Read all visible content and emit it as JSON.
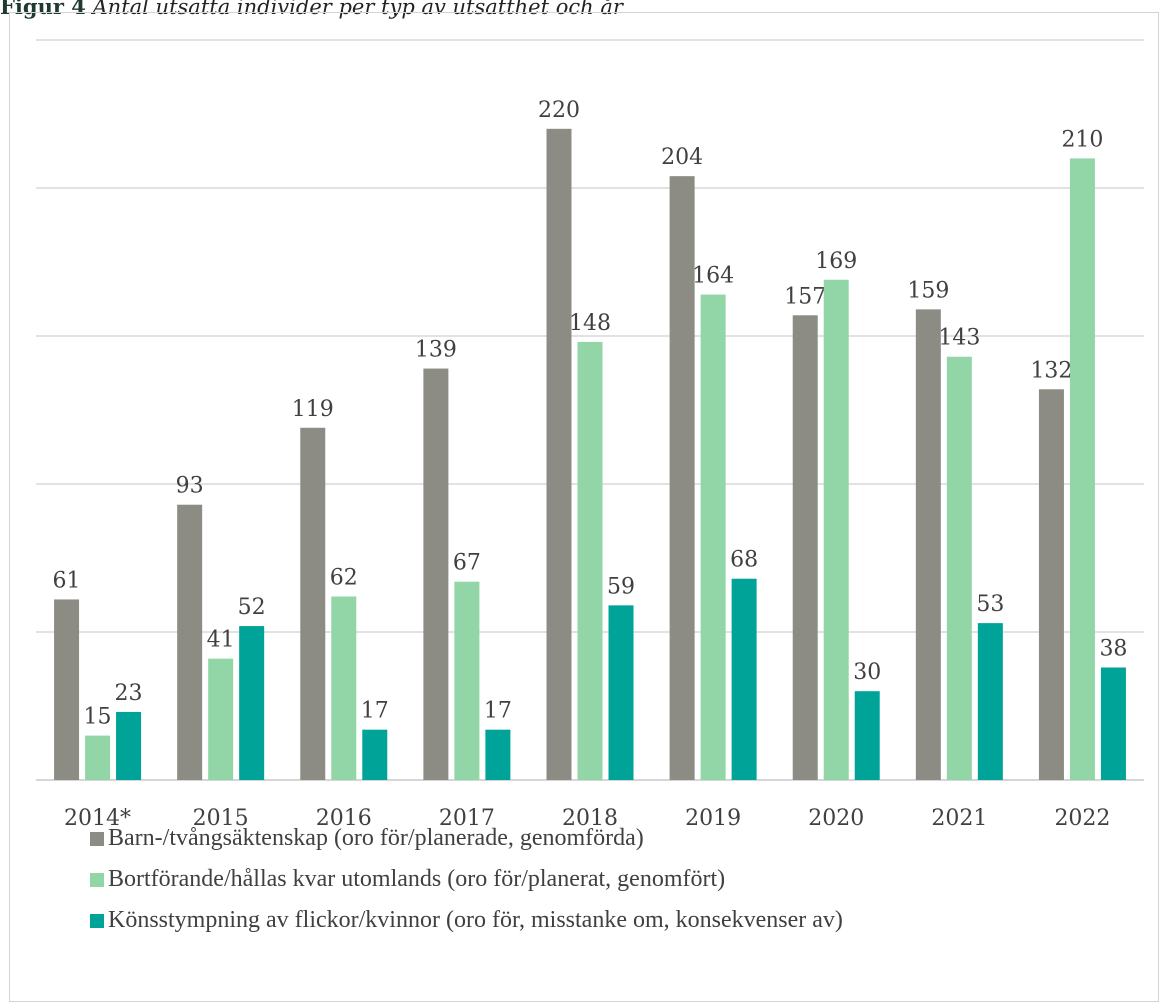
{
  "caption": {
    "figure_label": "Figur 4",
    "text": "Antal utsatta individer per typ av utsatthet och år"
  },
  "colors": {
    "series_1": "#8c8c84",
    "series_2": "#92d6a8",
    "series_3": "#00a397",
    "grid": "#d9d9d9",
    "axis": "#c8c8c8",
    "label": "#404040"
  },
  "chart_data": {
    "type": "bar",
    "title": "",
    "xlabel": "",
    "ylabel": "",
    "categories": [
      "2014*",
      "2015",
      "2016",
      "2017",
      "2018",
      "2019",
      "2020",
      "2021",
      "2022"
    ],
    "series": [
      {
        "name": "Barn-/tvångsäktenskap (oro för/planerade, genomförda)",
        "values": [
          61,
          93,
          119,
          139,
          220,
          204,
          157,
          159,
          132
        ]
      },
      {
        "name": "Bortförande/hållas kvar utomlands (oro för/planerat, genomfört)",
        "values": [
          15,
          41,
          62,
          67,
          148,
          164,
          169,
          143,
          210
        ]
      },
      {
        "name": "Könsstympning av flickor/kvinnor (oro för, misstanke om, konsekvenser av)",
        "values": [
          23,
          52,
          17,
          17,
          59,
          68,
          30,
          53,
          38
        ]
      }
    ],
    "ylim": [
      0,
      250
    ],
    "gridlines": [
      50,
      100,
      150,
      200,
      250
    ],
    "y_tick_labels_shown": false,
    "grid": true,
    "data_labels": true,
    "legend_position": "bottom"
  }
}
